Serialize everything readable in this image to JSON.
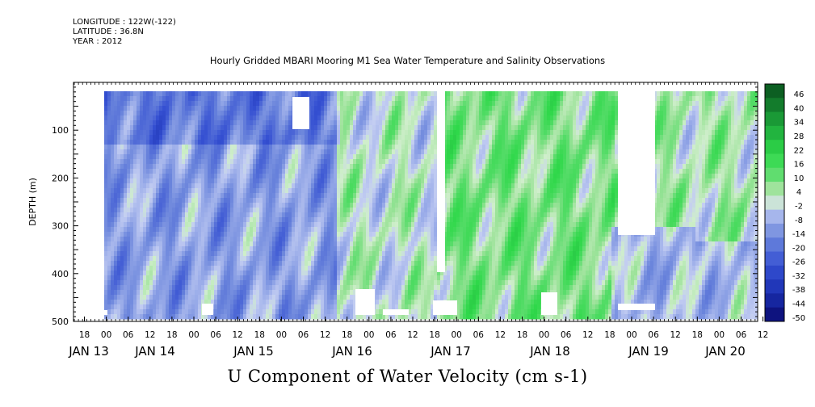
{
  "header": {
    "longitude": "LONGITUDE : 122W(-122)",
    "latitude": "LATITUDE : 36.8N",
    "year": "YEAR : 2012"
  },
  "chart_data": {
    "type": "heatmap",
    "title": "Hourly Gridded MBARI Mooring M1 Sea Water Temperature and Salinity Observations",
    "variable_title": "U Component of Water Velocity (cm s-1)",
    "ylabel": "DEPTH (m)",
    "xlabel": "",
    "ylim": [
      500,
      0
    ],
    "y_ticks": [
      100,
      200,
      300,
      400,
      500
    ],
    "y_tick_labels": [
      "100",
      "200",
      "300",
      "400",
      "500"
    ],
    "x_hour_tick_labels": [
      "18",
      "00",
      "06",
      "12",
      "18",
      "00",
      "06",
      "12",
      "18",
      "00",
      "06",
      "12",
      "18",
      "00",
      "06",
      "12",
      "18",
      "00",
      "06",
      "12",
      "18",
      "00",
      "06",
      "12",
      "18",
      "00",
      "06",
      "12",
      "18",
      "00",
      "06",
      "12"
    ],
    "x_date_labels": [
      "JAN 13",
      "JAN 14",
      "JAN 15",
      "JAN 16",
      "JAN 17",
      "JAN 18",
      "JAN 19",
      "JAN 20"
    ],
    "colorbar": {
      "labels": [
        "46",
        "40",
        "34",
        "28",
        "22",
        "16",
        "10",
        "4",
        "-2",
        "-8",
        "-14",
        "-20",
        "-26",
        "-32",
        "-38",
        "-44",
        "-50"
      ],
      "min": -50,
      "max": 50,
      "step": 6
    },
    "colors": {
      "negative_strong": "#1a2fb0",
      "negative_mid": "#6c86dc",
      "negative_weak": "#b9c6f0",
      "near_zero": "#d8efd0",
      "positive_weak": "#9fe39c",
      "positive_mid": "#2fd84a",
      "positive_strong": "#0b6a24"
    }
  }
}
